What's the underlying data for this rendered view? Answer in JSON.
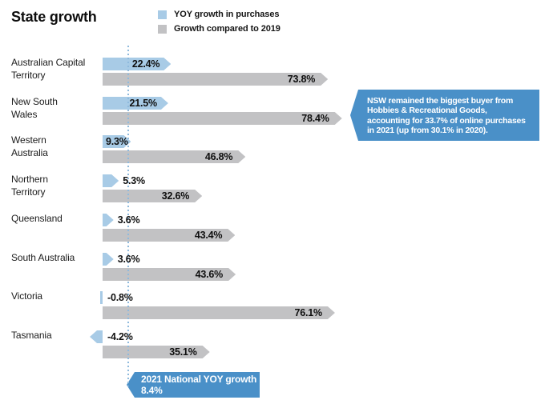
{
  "title": "State growth",
  "legend": [
    {
      "label": "YOY growth in purchases",
      "color": "#a8cbe6"
    },
    {
      "label": "Growth compared to 2019",
      "color": "#c2c2c4"
    }
  ],
  "colors": {
    "yoy_bar": "#a8cbe6",
    "growth_bar": "#c2c2c4",
    "accent_blue": "#4a90c8",
    "reference_line": "#8fbadd"
  },
  "chart_data": {
    "type": "bar",
    "orientation": "horizontal",
    "title": "State growth",
    "categories": [
      "Australian Capital Territory",
      "New South Wales",
      "Western Australia",
      "Northern Territory",
      "Queensland",
      "South Australia",
      "Victoria",
      "Tasmania"
    ],
    "series": [
      {
        "name": "YOY growth in purchases",
        "values": [
          22.4,
          21.5,
          9.3,
          5.3,
          3.6,
          3.6,
          -0.8,
          -4.2
        ]
      },
      {
        "name": "Growth compared to 2019",
        "values": [
          73.8,
          78.4,
          46.8,
          32.6,
          43.4,
          43.6,
          76.1,
          35.1
        ]
      }
    ],
    "value_suffix": "%",
    "xlim": [
      -5,
      80
    ],
    "grid": false,
    "legend_position": "top",
    "rows": [
      {
        "label": "Australian Capital\nTerritory",
        "yoy_label": "22.4%",
        "growth_label": "73.8%"
      },
      {
        "label": "New South\nWales",
        "yoy_label": "21.5%",
        "growth_label": "78.4%"
      },
      {
        "label": "Western\nAustralia",
        "yoy_label": "9.3%",
        "growth_label": "46.8%"
      },
      {
        "label": "Northern\nTerritory",
        "yoy_label": "5.3%",
        "growth_label": "32.6%"
      },
      {
        "label": "Queensland",
        "yoy_label": "3.6%",
        "growth_label": "43.4%"
      },
      {
        "label": "South Australia",
        "yoy_label": "3.6%",
        "growth_label": "43.6%"
      },
      {
        "label": "Victoria",
        "yoy_label": "-0.8%",
        "growth_label": "76.1%"
      },
      {
        "label": "Tasmania",
        "yoy_label": "-4.2%",
        "growth_label": "35.1%"
      }
    ],
    "reference_line": {
      "value": 8.4,
      "label_line1": "2021 National YOY growth",
      "label_line2": "8.4%"
    }
  },
  "callout": {
    "text": "NSW remained the biggest buyer from\nHobbies & Recreational Goods,\naccounting for 33.7% of online purchases\nin 2021 (up from 30.1% in 2020)."
  }
}
